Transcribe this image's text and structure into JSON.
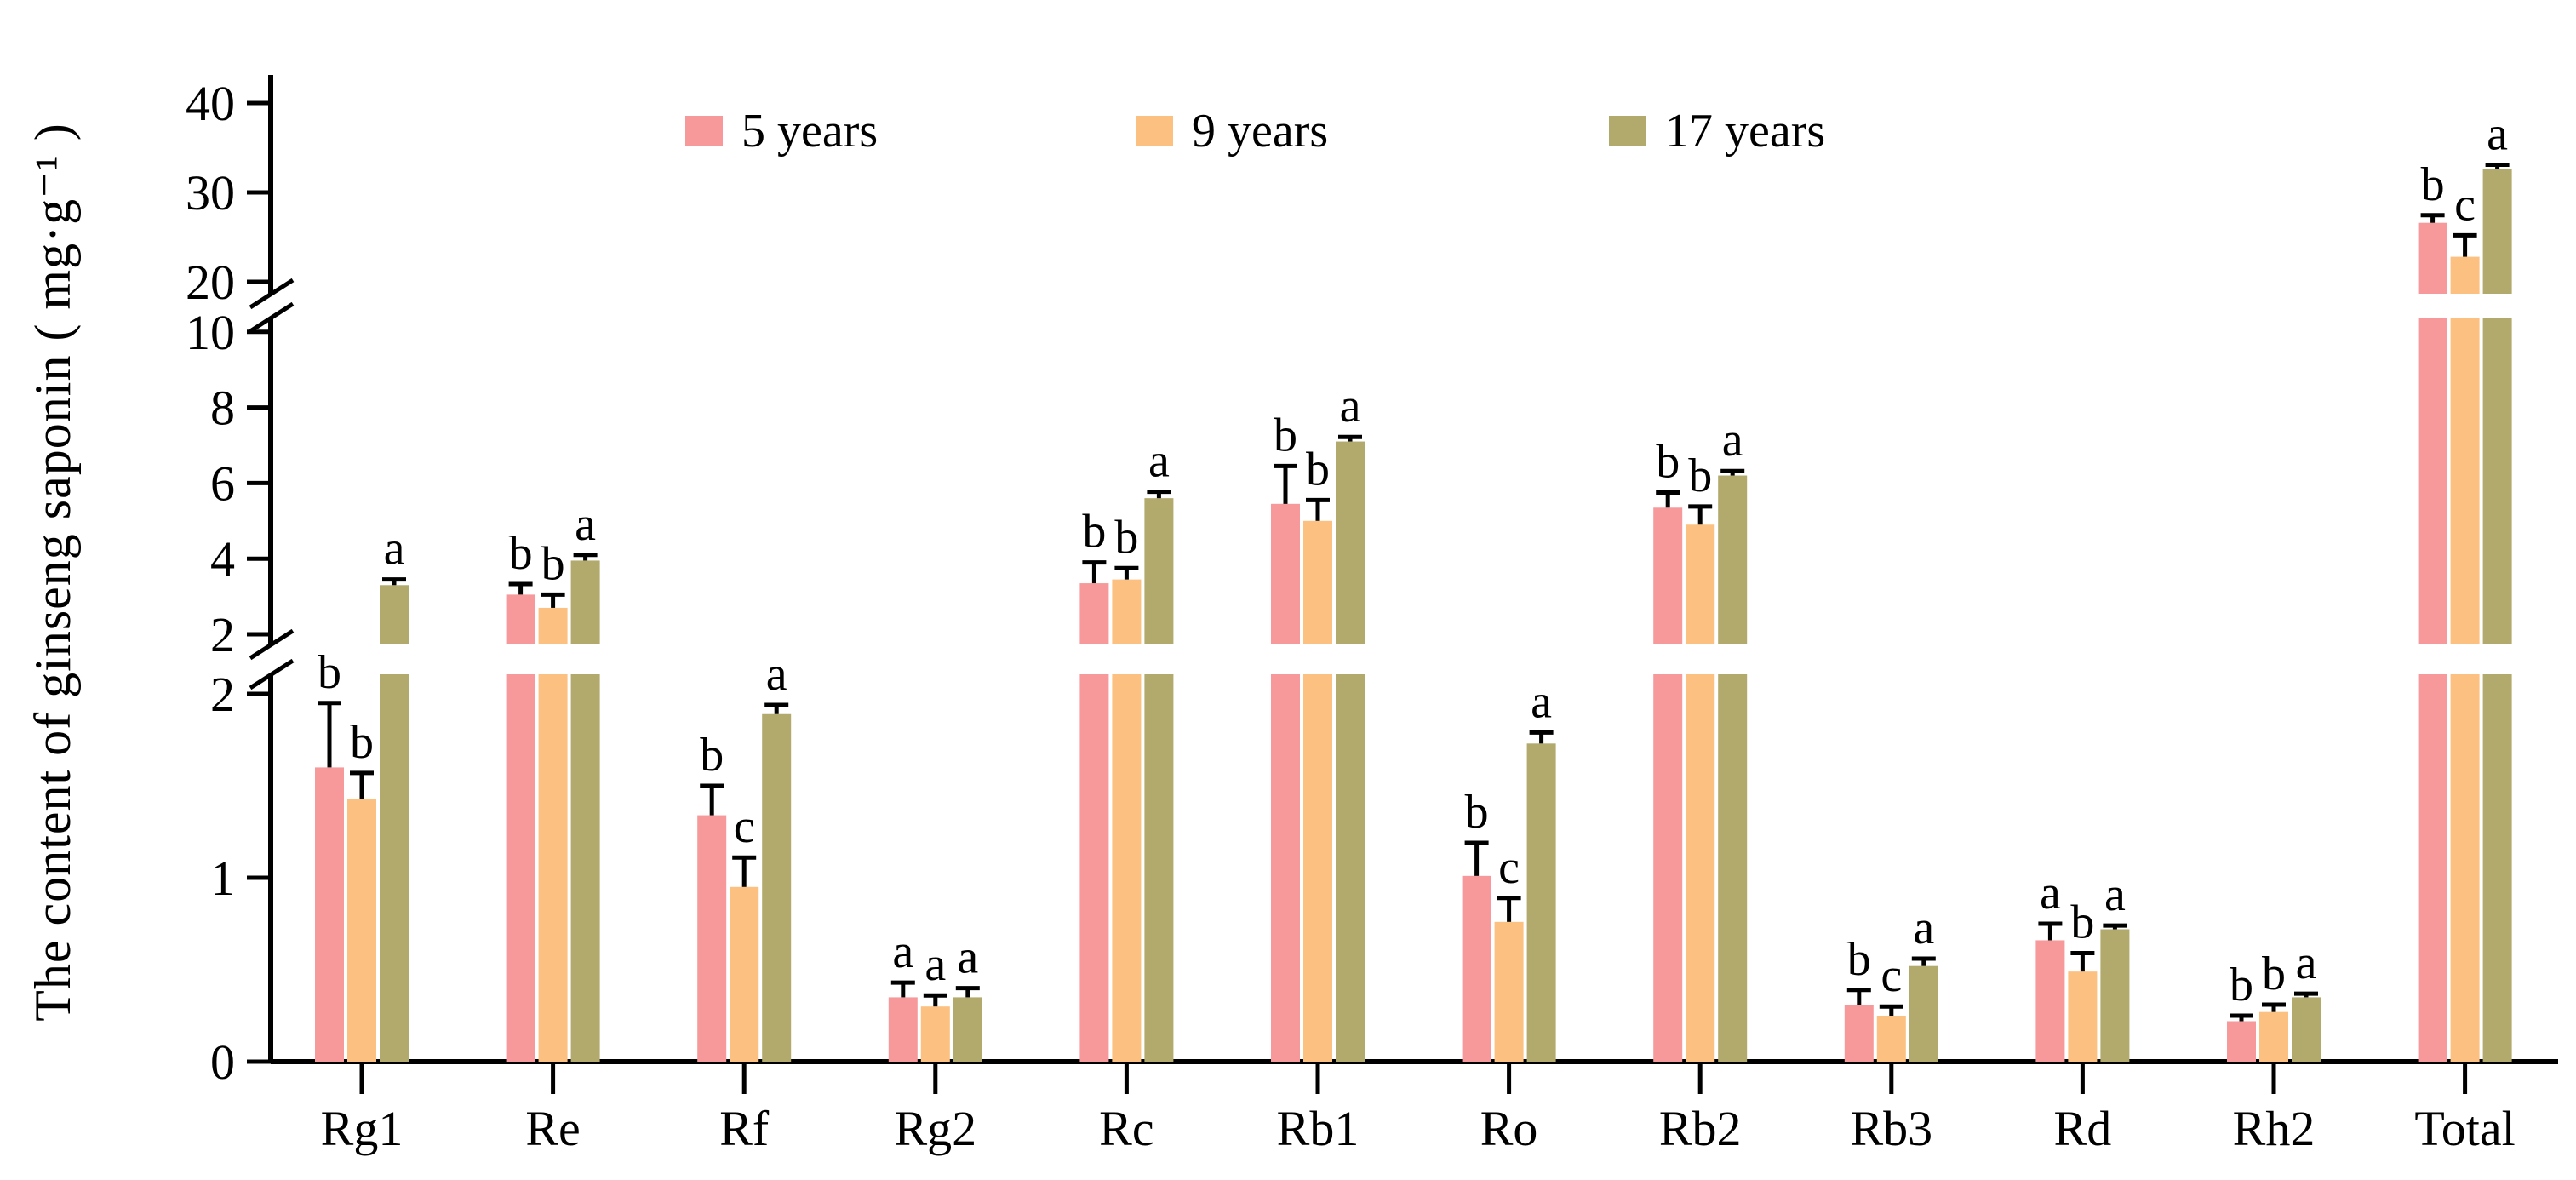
{
  "chart_data": {
    "type": "bar",
    "title": "",
    "ylabel": "The content of ginseng saponin ( mg·g⁻¹ )",
    "xlabel": "",
    "legend_position": "top",
    "grid": false,
    "categories": [
      "Rg1",
      "Re",
      "Rf",
      "Rg2",
      "Rc",
      "Rb1",
      "Ro",
      "Rb2",
      "Rb3",
      "Rd",
      "Rh2",
      "Total"
    ],
    "axis_segments": [
      {
        "range": [
          0,
          2
        ],
        "ticks": [
          0,
          1,
          2
        ]
      },
      {
        "range": [
          2,
          10
        ],
        "ticks": [
          2,
          4,
          6,
          8,
          10
        ]
      },
      {
        "range": [
          20,
          40
        ],
        "ticks": [
          20,
          30,
          40
        ]
      }
    ],
    "axis_breaks": [
      "between 2 and 2 (scale change)",
      "between 10 and 20"
    ],
    "series": [
      {
        "name": "5 years",
        "color": "#F7999B",
        "values": [
          1.6,
          3.05,
          1.34,
          0.35,
          3.35,
          5.45,
          1.01,
          5.35,
          0.31,
          0.66,
          0.22,
          26.6
        ],
        "errors": [
          0.35,
          0.28,
          0.16,
          0.08,
          0.55,
          1.0,
          0.18,
          0.4,
          0.08,
          0.09,
          0.03,
          0.85
        ],
        "letters": [
          "b",
          "b",
          "b",
          "a",
          "b",
          "b",
          "b",
          "b",
          "b",
          "a",
          "b",
          "b"
        ]
      },
      {
        "name": "9 years",
        "color": "#FCC181",
        "values": [
          1.43,
          2.7,
          0.95,
          0.3,
          3.45,
          5.0,
          0.76,
          4.9,
          0.25,
          0.49,
          0.27,
          22.8
        ],
        "errors": [
          0.14,
          0.35,
          0.16,
          0.06,
          0.3,
          0.55,
          0.13,
          0.48,
          0.05,
          0.1,
          0.04,
          2.4
        ],
        "letters": [
          "b",
          "b",
          "c",
          "a",
          "b",
          "b",
          "c",
          "b",
          "c",
          "b",
          "b",
          "c"
        ]
      },
      {
        "name": "17 years",
        "color": "#B2A96C",
        "values": [
          3.3,
          3.95,
          1.89,
          0.35,
          5.6,
          7.1,
          1.73,
          6.2,
          0.52,
          0.72,
          0.35,
          32.6
        ],
        "errors": [
          0.15,
          0.15,
          0.05,
          0.05,
          0.17,
          0.12,
          0.06,
          0.12,
          0.04,
          0.02,
          0.02,
          0.5
        ],
        "letters": [
          "a",
          "a",
          "a",
          "a",
          "a",
          "a",
          "a",
          "a",
          "a",
          "a",
          "a",
          "a"
        ]
      }
    ]
  }
}
